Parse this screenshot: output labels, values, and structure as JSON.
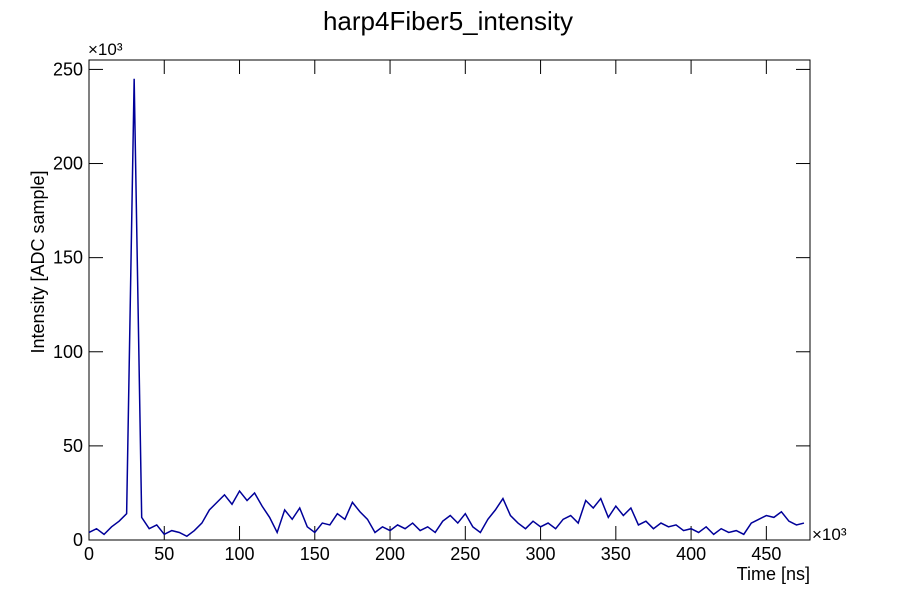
{
  "chart_data": {
    "type": "line",
    "title": "harp4Fiber5_intensity",
    "x_label": "Time [ns]",
    "y_label": "Intensity [ADC sample]",
    "x_multiplier": "×10³",
    "y_multiplier": "×10³",
    "x": [
      0,
      5,
      10,
      15,
      20,
      25,
      30,
      35,
      40,
      45,
      50,
      55,
      60,
      65,
      70,
      75,
      80,
      85,
      90,
      95,
      100,
      105,
      110,
      115,
      120,
      125,
      130,
      135,
      140,
      145,
      150,
      155,
      160,
      165,
      170,
      175,
      180,
      185,
      190,
      195,
      200,
      205,
      210,
      215,
      220,
      225,
      230,
      235,
      240,
      245,
      250,
      255,
      260,
      265,
      270,
      275,
      280,
      285,
      290,
      295,
      300,
      305,
      310,
      315,
      320,
      325,
      330,
      335,
      340,
      345,
      350,
      355,
      360,
      365,
      370,
      375,
      380,
      385,
      390,
      395,
      400,
      405,
      410,
      415,
      420,
      425,
      430,
      435,
      440,
      445,
      450,
      455,
      460,
      465,
      470,
      475
    ],
    "series": [
      {
        "name": "harp4Fiber5_intensity",
        "color": "#000099",
        "values": [
          4,
          6,
          3,
          7,
          10,
          14,
          245,
          12,
          6,
          8,
          3,
          5,
          4,
          2,
          5,
          9,
          16,
          20,
          24,
          19,
          26,
          21,
          25,
          18,
          12,
          4,
          16,
          11,
          17,
          7,
          4,
          9,
          8,
          14,
          11,
          20,
          15,
          11,
          4,
          7,
          5,
          8,
          6,
          9,
          5,
          7,
          4,
          10,
          13,
          9,
          14,
          7,
          4,
          11,
          16,
          22,
          13,
          9,
          6,
          10,
          7,
          9,
          6,
          11,
          13,
          9,
          21,
          17,
          22,
          12,
          18,
          13,
          17,
          8,
          10,
          6,
          9,
          7,
          8,
          5,
          6,
          4,
          7,
          3,
          6,
          4,
          5,
          3,
          9,
          11,
          13,
          12,
          15,
          10,
          8,
          9
        ]
      }
    ],
    "xlim": [
      0,
      479
    ],
    "ylim": [
      0,
      255
    ],
    "xticks": [
      0,
      50,
      100,
      150,
      200,
      250,
      300,
      350,
      400,
      450
    ],
    "yticks": [
      0,
      50,
      100,
      150,
      200,
      250
    ]
  }
}
